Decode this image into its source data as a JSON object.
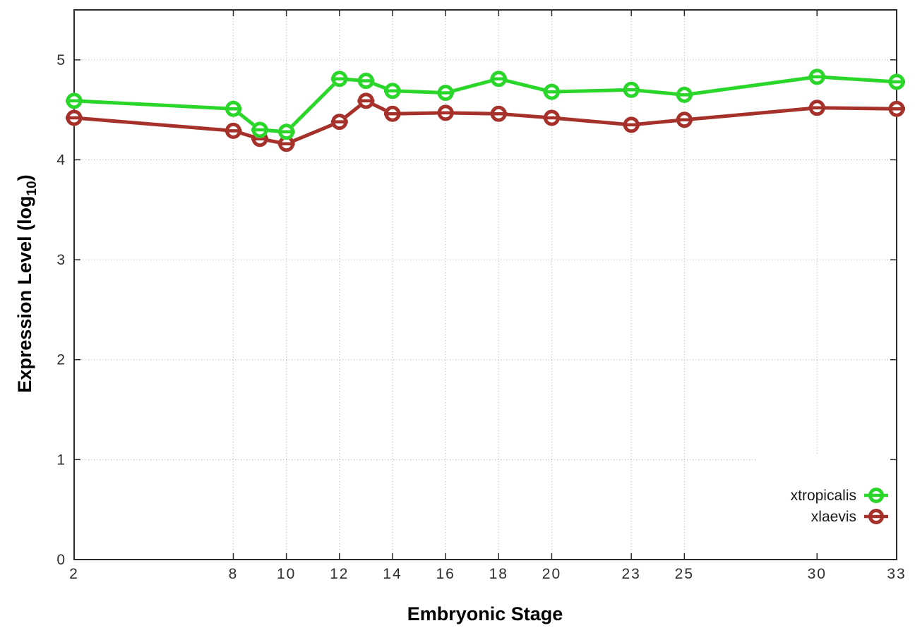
{
  "chart_data": {
    "type": "line",
    "title": "",
    "xlabel": "Embryonic Stage",
    "ylabel": "Expression Level (log10)",
    "ylabel_parts": {
      "main": "Expression Level (log",
      "sub": "10",
      "close": ")"
    },
    "x": [
      2,
      8,
      9,
      10,
      12,
      13,
      14,
      16,
      18,
      20,
      23,
      25,
      30,
      33
    ],
    "series": [
      {
        "name": "xtropicalis",
        "color": "#2BD62B",
        "values": [
          4.59,
          4.51,
          4.3,
          4.28,
          4.81,
          4.79,
          4.69,
          4.67,
          4.81,
          4.68,
          4.7,
          4.65,
          4.83,
          4.78
        ]
      },
      {
        "name": "xlaevis",
        "color": "#A6302A",
        "values": [
          4.42,
          4.29,
          4.21,
          4.16,
          4.38,
          4.59,
          4.46,
          4.47,
          4.46,
          4.42,
          4.35,
          4.4,
          4.52,
          4.51
        ]
      }
    ],
    "x_ticks": [
      2,
      8,
      10,
      12,
      14,
      16,
      18,
      20,
      23,
      25,
      30,
      33
    ],
    "y_ticks": [
      0,
      1,
      2,
      3,
      4,
      5
    ],
    "xlim": [
      2,
      33
    ],
    "ylim": [
      0,
      5.5
    ],
    "grid": true,
    "legend_position": "bottom-right",
    "marker_style": "open-circle-with-errorbar"
  },
  "colors": {
    "background": "#ffffff",
    "axis": "#2a2a2a",
    "grid": "#b0b0b0",
    "tick_label": "#2f2f2f",
    "axis_title": "#000000",
    "legend_text": "#1a1a1a"
  }
}
